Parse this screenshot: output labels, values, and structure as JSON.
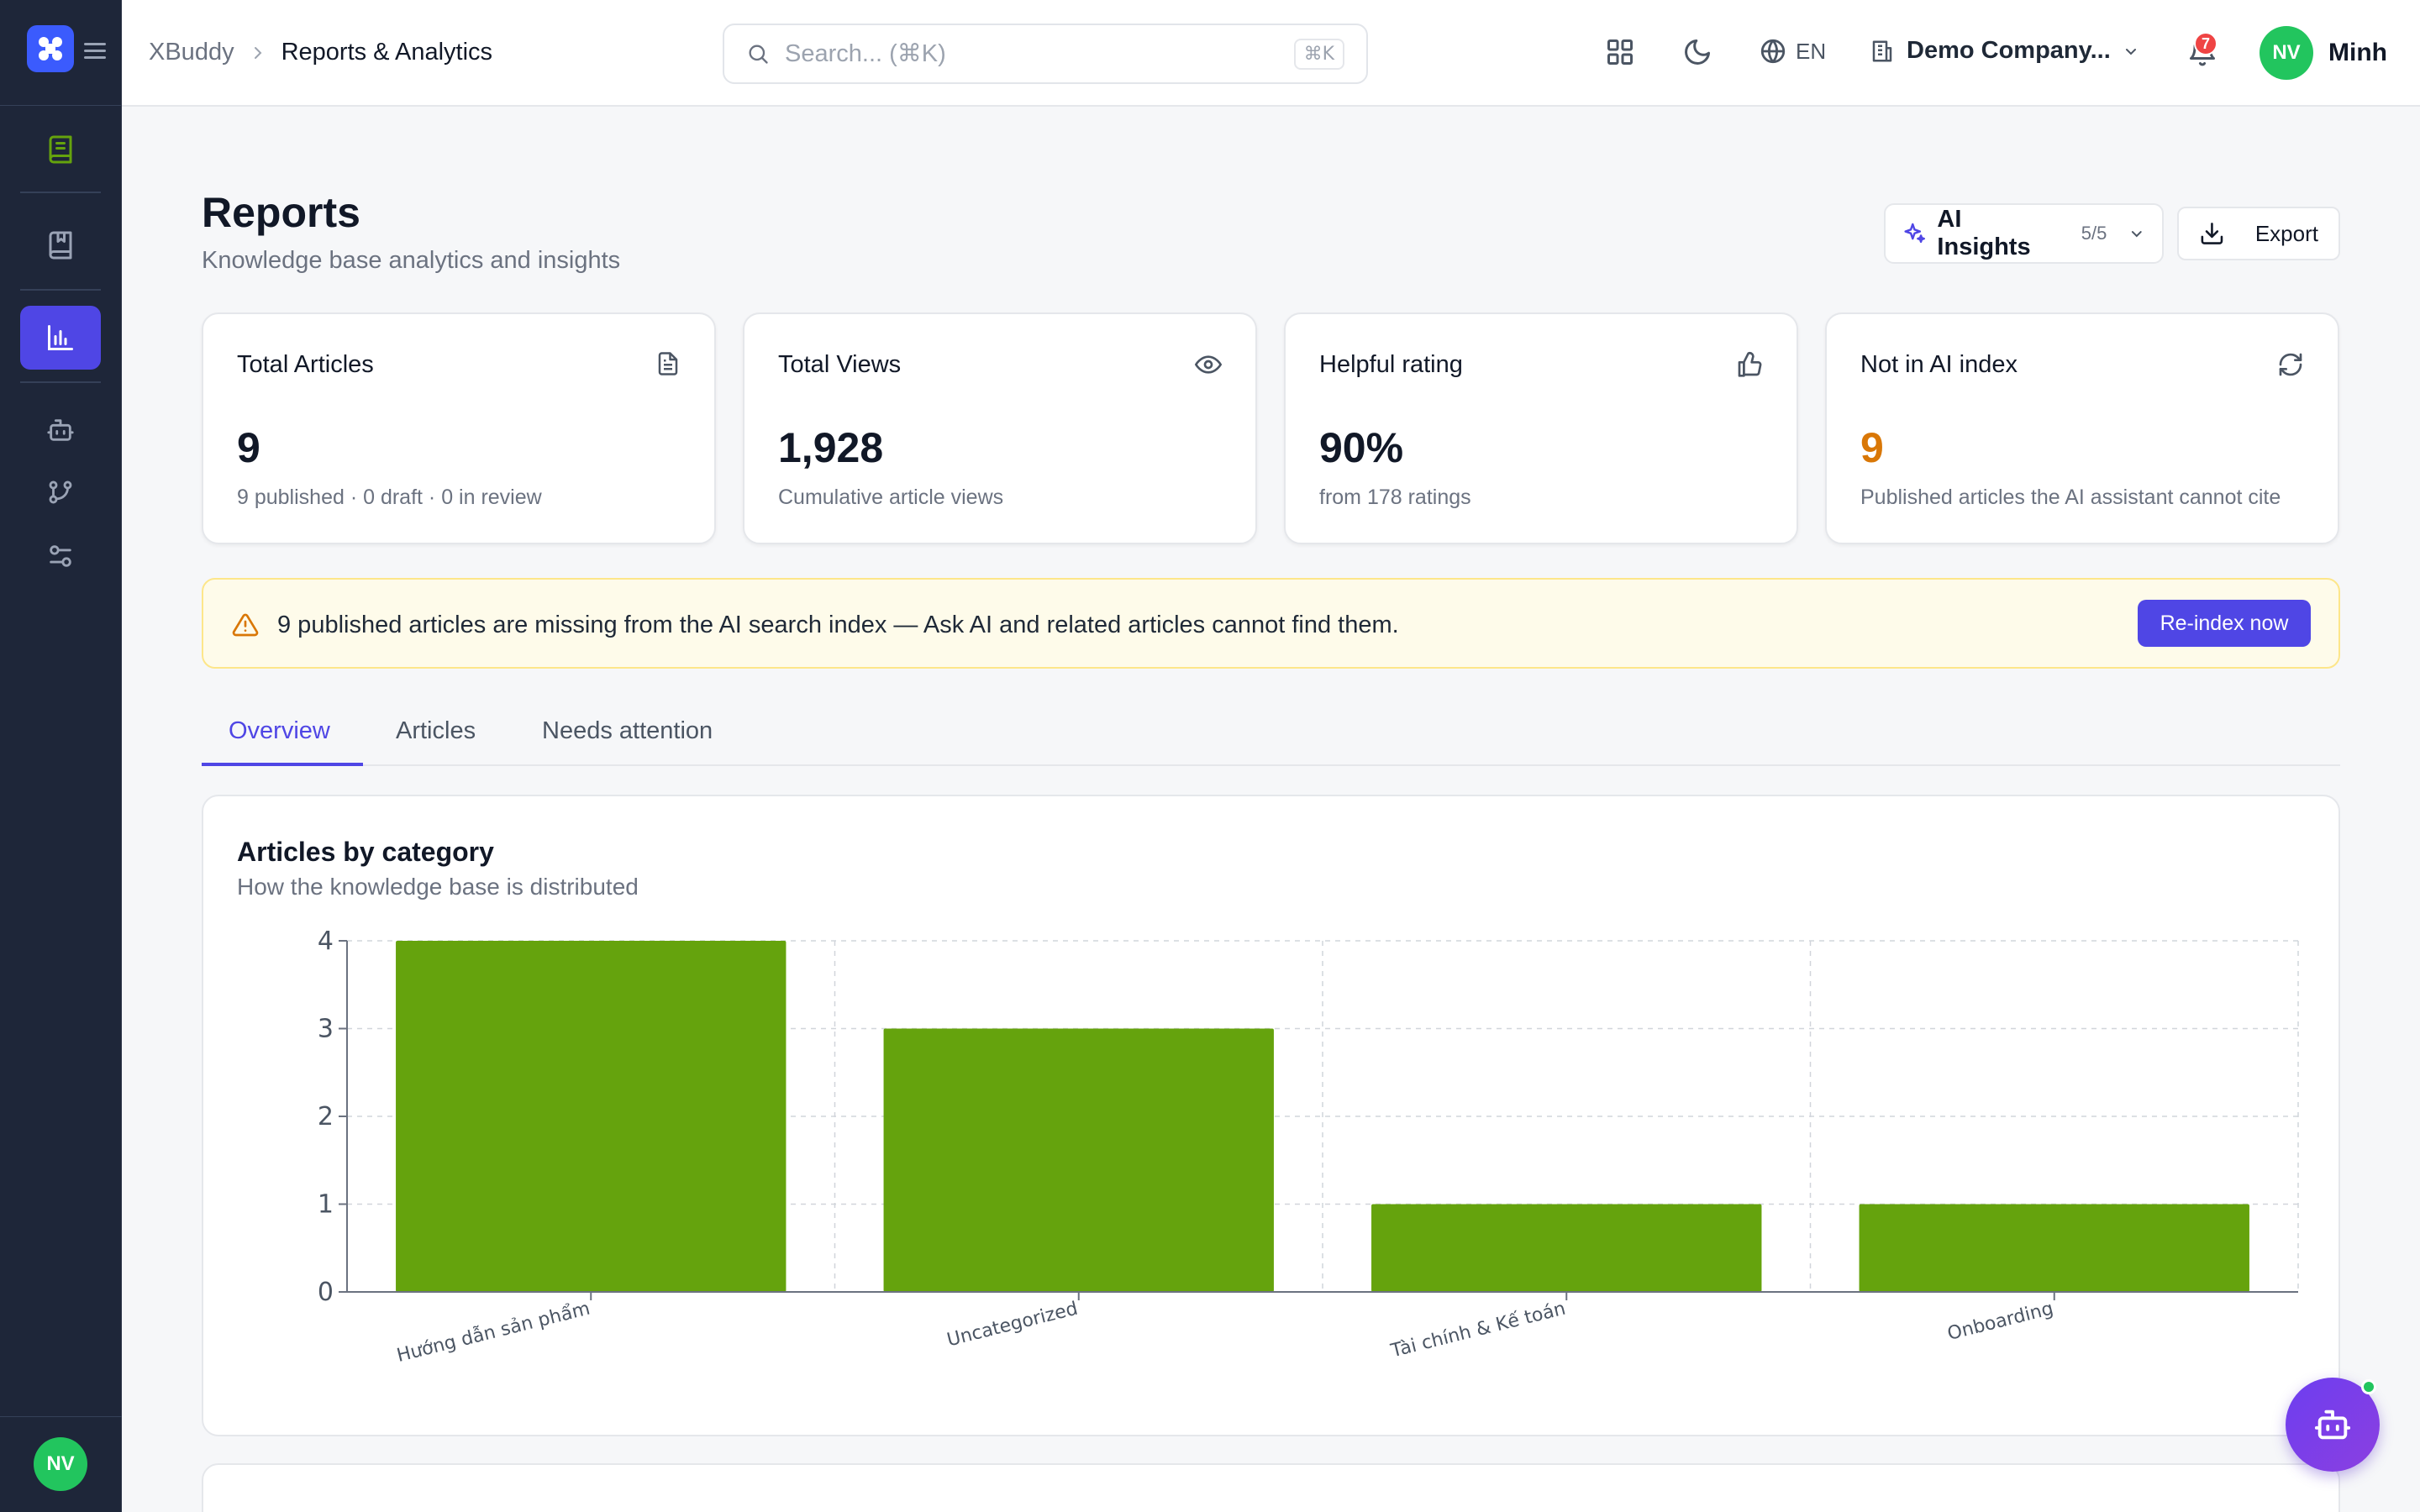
{
  "app": {
    "name": "XBuddy"
  },
  "breadcrumb": {
    "root": "XBuddy",
    "current": "Reports & Analytics"
  },
  "search": {
    "placeholder": "Search... (⌘K)",
    "shortcut": "⌘K"
  },
  "topbar": {
    "language": "EN",
    "company": "Demo Company...",
    "notifications_count": "7",
    "user_initials": "NV",
    "user_name": "Minh"
  },
  "sidebar": {
    "items": [
      {
        "icon": "book-icon",
        "active": false
      },
      {
        "icon": "bookmark-book-icon",
        "active": false
      },
      {
        "icon": "bar-chart-icon",
        "active": true
      },
      {
        "icon": "bot-icon",
        "active": false
      },
      {
        "icon": "git-branch-icon",
        "active": false
      },
      {
        "icon": "sliders-icon",
        "active": false
      }
    ],
    "user_initials": "NV"
  },
  "page": {
    "title": "Reports",
    "subtitle": "Knowledge base analytics and insights",
    "ai_insights_label": "AI Insights",
    "ai_insights_count": "5/5",
    "export_label": "Export"
  },
  "stats": [
    {
      "title": "Total Articles",
      "value": "9",
      "sub": "9 published · 0 draft · 0 in review",
      "icon": "document-icon"
    },
    {
      "title": "Total Views",
      "value": "1,928",
      "sub": "Cumulative article views",
      "icon": "eye-icon"
    },
    {
      "title": "Helpful rating",
      "value": "90%",
      "sub": "from 178 ratings",
      "icon": "thumbs-up-icon"
    },
    {
      "title": "Not in AI index",
      "value": "9",
      "sub": "Published articles the AI assistant cannot cite",
      "icon": "refresh-icon"
    }
  ],
  "alert": {
    "text": "9 published articles are missing from the AI search index — Ask AI and related articles cannot find them.",
    "button": "Re-index now"
  },
  "tabs": [
    {
      "label": "Overview",
      "active": true
    },
    {
      "label": "Articles",
      "active": false
    },
    {
      "label": "Needs attention",
      "active": false
    }
  ],
  "chart_section": {
    "title": "Articles by category",
    "subtitle": "How the knowledge base is distributed"
  },
  "chart_data": {
    "type": "bar",
    "categories": [
      "Hướng dẫn sản phẩm",
      "Uncategorized",
      "Tài chính & Kế toán",
      "Onboarding"
    ],
    "values": [
      4,
      3,
      1,
      1
    ],
    "yticks": [
      0,
      1,
      2,
      3,
      4
    ],
    "ylim": [
      0,
      4
    ],
    "grid": true,
    "bar_color": "#65a30d"
  },
  "colors": {
    "accent": "#4f46e5",
    "sidebar_bg": "#1e2639",
    "warning": "#d97706",
    "bar": "#65a30d"
  }
}
